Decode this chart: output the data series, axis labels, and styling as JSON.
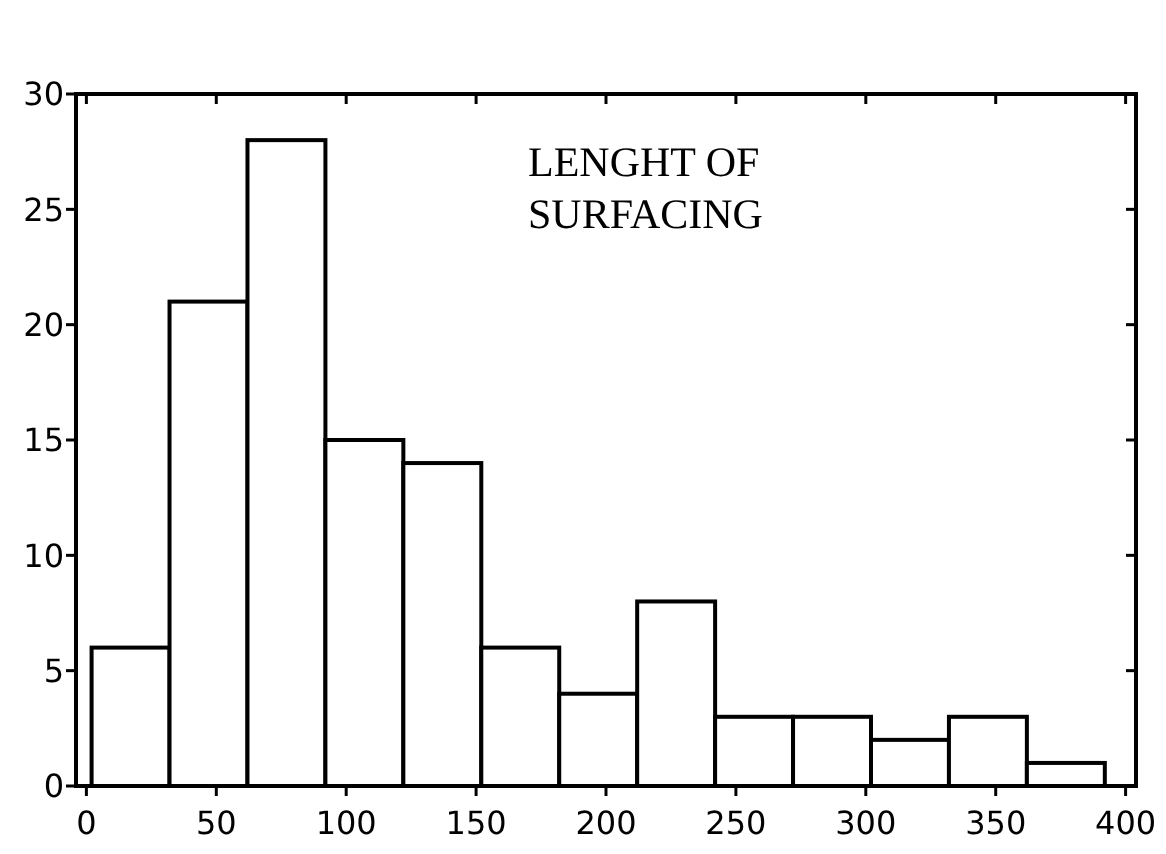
{
  "chart_data": {
    "type": "histogram",
    "title": "LENGHT OF\nSURFACING",
    "bins": [
      2,
      32,
      62,
      92,
      122,
      152,
      182,
      212,
      242,
      272,
      302,
      332,
      362,
      392
    ],
    "values": [
      6,
      21,
      28,
      15,
      14,
      6,
      4,
      8,
      3,
      3,
      2,
      3,
      1
    ],
    "color": "#ffffff",
    "xlim": [
      -4,
      404
    ],
    "xticks": [
      0,
      50,
      100,
      150,
      200,
      250,
      300,
      350,
      400
    ],
    "ylim": [
      0,
      30
    ],
    "yticks": [
      0,
      5,
      10,
      15,
      20,
      25,
      30
    ],
    "grid": false
  }
}
